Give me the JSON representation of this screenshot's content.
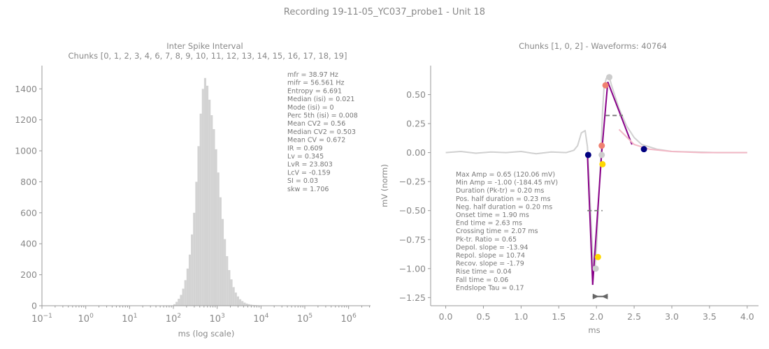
{
  "figure_title": "Recording 19-11-05_YC037_probe1 - Unit 18",
  "colors": {
    "text": "#888888",
    "axis": "#999999",
    "histogram": "#d3d3d3",
    "mean_waveform": "#d0d0d0",
    "fit_line": "#880088",
    "recovery_fit": "#f2b8c6",
    "marker_red": "#f08070",
    "marker_navy": "#000080",
    "marker_gold": "#ffd700",
    "marker_grey": "#cccccc",
    "half_width_dash": "#777777"
  },
  "chart_data": [
    {
      "type": "bar",
      "title": "Inter Spike Interval",
      "subtitle": "Chunks [0, 1, 2, 3, 4, 6, 7, 8, 9, 10, 11, 12, 13, 14, 15, 16, 17, 18, 19]",
      "xlabel": "ms (log scale)",
      "ylabel": "",
      "xscale": "log",
      "xlim_log10": [
        -1,
        6.5
      ],
      "ylim": [
        0,
        1550
      ],
      "x_tick_exponents": [
        -1,
        0,
        1,
        2,
        3,
        4,
        5,
        6
      ],
      "x_tick_base": "10",
      "y_ticks": [
        0,
        200,
        400,
        600,
        800,
        1000,
        1200,
        1400
      ],
      "histogram_log10_edges": [
        2.0,
        2.05,
        2.1,
        2.15,
        2.2,
        2.25,
        2.3,
        2.35,
        2.4,
        2.45,
        2.5,
        2.55,
        2.6,
        2.65,
        2.7,
        2.75,
        2.8,
        2.85,
        2.9,
        2.95,
        3.0,
        3.05,
        3.1,
        3.15,
        3.2,
        3.25,
        3.3,
        3.35,
        3.4,
        3.45,
        3.5,
        3.55,
        3.6,
        3.65,
        3.7,
        3.75,
        3.8,
        3.85,
        3.9,
        3.95,
        4.0,
        4.05,
        4.1,
        4.15,
        4.2
      ],
      "histogram_counts": [
        10,
        25,
        45,
        70,
        110,
        165,
        240,
        330,
        460,
        600,
        800,
        1030,
        1240,
        1400,
        1470,
        1420,
        1330,
        1230,
        1140,
        1010,
        860,
        700,
        560,
        430,
        320,
        230,
        170,
        120,
        85,
        60,
        42,
        30,
        20,
        14,
        10,
        7,
        5,
        4,
        3,
        2,
        2,
        1,
        1,
        1
      ],
      "stats_lines": [
        "mfr = 38.97 Hz",
        "mifr = 56.561 Hz",
        "Entropy = 6.691",
        "Median (isi) = 0.021",
        "Mode (isi) = 0",
        "Perc 5th (isi) = 0.008",
        "Mean CV2 = 0.56",
        "Median CV2 = 0.503",
        "Mean CV = 0.672",
        "IR = 0.609",
        "Lv = 0.345",
        "LvR = 23.803",
        "LcV = -0.159",
        "SI = 0.03",
        "skw = 1.706"
      ]
    },
    {
      "type": "line",
      "title": "Chunks [1, 0, 2] - Waveforms: 40764",
      "xlabel": "ms",
      "ylabel": "mV (norm)",
      "xlim": [
        -0.2,
        4.15
      ],
      "ylim": [
        -1.32,
        0.75
      ],
      "x_ticks": [
        0.0,
        0.5,
        1.0,
        1.5,
        2.0,
        2.5,
        3.0,
        3.5,
        4.0
      ],
      "x_tick_labels": [
        "0.0",
        "0.5",
        "1.0",
        "1.5",
        "2.0",
        "2.5",
        "3.0",
        "3.5",
        "4.0"
      ],
      "y_ticks": [
        0.5,
        0.25,
        0.0,
        -0.25,
        -0.5,
        -0.75,
        -1.0,
        -1.25
      ],
      "y_tick_labels": [
        "0.50",
        "0.25",
        "0.00",
        "−0.25",
        "−0.50",
        "−0.75",
        "−1.00",
        "−1.25"
      ],
      "series": [
        {
          "name": "mean waveform",
          "x": [
            0.0,
            0.2,
            0.4,
            0.6,
            0.8,
            1.0,
            1.2,
            1.4,
            1.6,
            1.7,
            1.75,
            1.8,
            1.85,
            1.88,
            1.9,
            1.93,
            1.96,
            1.98,
            2.0,
            2.03,
            2.06,
            2.08,
            2.1,
            2.13,
            2.17,
            2.2,
            2.3,
            2.4,
            2.5,
            2.6,
            2.8,
            3.0,
            3.3,
            3.6,
            4.0
          ],
          "y": [
            0.0,
            0.01,
            -0.005,
            0.005,
            0.0,
            0.01,
            -0.01,
            0.005,
            0.0,
            0.02,
            0.06,
            0.17,
            0.19,
            0.05,
            -0.2,
            -0.6,
            -1.0,
            -1.0,
            -0.82,
            -0.4,
            0.0,
            0.35,
            0.56,
            0.64,
            0.65,
            0.58,
            0.38,
            0.23,
            0.13,
            0.07,
            0.03,
            0.01,
            0.005,
            0.0,
            0.0
          ]
        },
        {
          "name": "depolarization fit",
          "x": [
            1.88,
            1.95
          ],
          "y": [
            -0.02,
            -1.14
          ]
        },
        {
          "name": "repolarization fit",
          "x": [
            1.95,
            2.07,
            2.15
          ],
          "y": [
            -1.14,
            0.0,
            0.61
          ]
        },
        {
          "name": "recovery fit",
          "x": [
            2.15,
            2.47
          ],
          "y": [
            0.61,
            0.07
          ]
        },
        {
          "name": "endslope fit",
          "x": [
            2.3,
            2.5,
            2.7,
            3.0,
            3.4,
            4.0
          ],
          "y": [
            0.2,
            0.07,
            0.03,
            0.01,
            0.0,
            0.0
          ]
        }
      ],
      "markers": [
        {
          "x": 2.17,
          "y": 0.65,
          "color": "marker_grey"
        },
        {
          "x": 2.12,
          "y": 0.58,
          "color": "marker_red"
        },
        {
          "x": 2.07,
          "y": 0.06,
          "color": "marker_red"
        },
        {
          "x": 2.07,
          "y": -0.02,
          "color": "marker_grey"
        },
        {
          "x": 1.89,
          "y": -0.02,
          "color": "marker_navy"
        },
        {
          "x": 2.63,
          "y": 0.03,
          "color": "marker_navy"
        },
        {
          "x": 2.08,
          "y": -0.1,
          "color": "marker_gold"
        },
        {
          "x": 2.02,
          "y": -0.9,
          "color": "marker_gold"
        },
        {
          "x": 1.99,
          "y": -1.0,
          "color": "marker_grey"
        }
      ],
      "half_widths": [
        {
          "x1": 2.12,
          "x2": 2.35,
          "y": 0.32
        },
        {
          "x1": 1.88,
          "x2": 2.08,
          "y": -0.5
        }
      ],
      "duration_arrow": {
        "x1": 1.95,
        "x2": 2.15,
        "y": -1.24
      },
      "stats_lines": [
        "Max Amp = 0.65 (120.06 mV)",
        "Min Amp = -1.00 (-184.45 mV)",
        "Duration (Pk-tr) = 0.20 ms",
        "Pos. half duration = 0.23 ms",
        "Neg. half duration = 0.20 ms",
        "Onset time = 1.90 ms",
        "End time = 2.63 ms",
        "Crossing time = 2.07 ms",
        "Pk-tr. Ratio = 0.65",
        "Depol. slope = -13.94",
        "Repol. slope = 10.74",
        "Recov. slope = -1.79",
        "Rise time = 0.04",
        "Fall time = 0.06",
        "Endslope Tau = 0.17"
      ]
    }
  ]
}
